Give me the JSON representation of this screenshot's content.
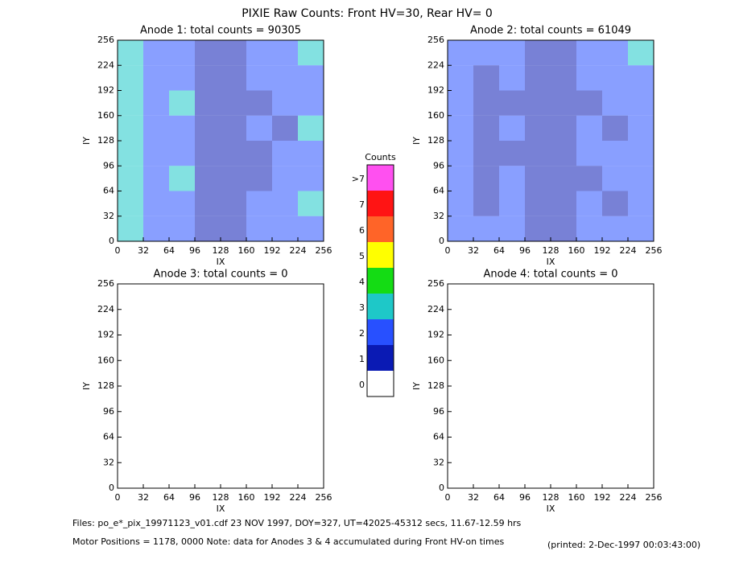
{
  "title": "PIXIE Raw Counts:  Front HV=30, Rear HV= 0",
  "chart_data": [
    {
      "type": "heatmap",
      "title": "Anode 1: total counts = 90305",
      "xlabel": "IX",
      "ylabel": "IY",
      "xlim": [
        0,
        256
      ],
      "ylim": [
        0,
        256
      ],
      "xticks": [
        0,
        32,
        64,
        96,
        128,
        160,
        192,
        224,
        256
      ],
      "yticks": [
        0,
        32,
        64,
        96,
        128,
        160,
        192,
        224,
        256
      ],
      "values": [
        [
          3,
          2,
          2,
          1,
          1,
          2,
          2,
          3
        ],
        [
          3,
          2,
          2,
          1,
          1,
          2,
          2,
          2
        ],
        [
          3,
          2,
          3,
          1,
          1,
          1,
          2,
          2
        ],
        [
          3,
          2,
          2,
          1,
          1,
          2,
          1,
          3
        ],
        [
          3,
          2,
          2,
          1,
          1,
          1,
          2,
          2
        ],
        [
          3,
          2,
          3,
          1,
          1,
          1,
          2,
          2
        ],
        [
          3,
          2,
          2,
          1,
          1,
          2,
          2,
          3
        ],
        [
          3,
          2,
          2,
          1,
          1,
          2,
          2,
          2
        ]
      ]
    },
    {
      "type": "heatmap",
      "title": "Anode 2: total counts = 61049",
      "xlabel": "IX",
      "ylabel": "IY",
      "xlim": [
        0,
        256
      ],
      "ylim": [
        0,
        256
      ],
      "xticks": [
        0,
        32,
        64,
        96,
        128,
        160,
        192,
        224,
        256
      ],
      "yticks": [
        0,
        32,
        64,
        96,
        128,
        160,
        192,
        224,
        256
      ],
      "values": [
        [
          2,
          2,
          2,
          1,
          1,
          2,
          2,
          3
        ],
        [
          2,
          1,
          2,
          1,
          1,
          2,
          2,
          2
        ],
        [
          2,
          1,
          1,
          1,
          1,
          1,
          2,
          2
        ],
        [
          2,
          1,
          2,
          1,
          1,
          2,
          1,
          2
        ],
        [
          2,
          1,
          1,
          1,
          1,
          2,
          2,
          2
        ],
        [
          2,
          1,
          2,
          1,
          1,
          1,
          2,
          2
        ],
        [
          2,
          1,
          2,
          1,
          1,
          2,
          1,
          2
        ],
        [
          2,
          2,
          2,
          1,
          1,
          2,
          2,
          2
        ]
      ]
    },
    {
      "type": "heatmap",
      "title": "Anode 3: total counts = 0",
      "xlabel": "IX",
      "ylabel": "IY",
      "xlim": [
        0,
        256
      ],
      "ylim": [
        0,
        256
      ],
      "xticks": [
        0,
        32,
        64,
        96,
        128,
        160,
        192,
        224,
        256
      ],
      "yticks": [
        0,
        32,
        64,
        96,
        128,
        160,
        192,
        224,
        256
      ]
    },
    {
      "type": "heatmap",
      "title": "Anode 4: total counts = 0",
      "xlabel": "IX",
      "ylabel": "IY",
      "xlim": [
        0,
        256
      ],
      "ylim": [
        0,
        256
      ],
      "xticks": [
        0,
        32,
        64,
        96,
        128,
        160,
        192,
        224,
        256
      ],
      "yticks": [
        0,
        32,
        64,
        96,
        128,
        160,
        192,
        224,
        256
      ]
    }
  ],
  "colorbar": {
    "title": "Counts",
    "labels": [
      "0",
      "1",
      "2",
      "3",
      "4",
      "5",
      "6",
      "7",
      ">7"
    ],
    "colors": [
      "#ffffff",
      "#0a1ab4",
      "#2850ff",
      "#1ec8c8",
      "#14dc14",
      "#ffff00",
      "#ff6428",
      "#ff1414",
      "#ff50f0"
    ]
  },
  "footer": {
    "files": "Files: po_e*_pix_19971123_v01.cdf    23 NOV 1997, DOY=327, UT=42025-45312 secs, 11.67-12.59 hrs",
    "motor": "Motor Positions = 1178, 0000    Note: data for Anodes 3 & 4 accumulated during Front HV-on times",
    "printed": "(printed:  2-Dec-1997 00:03:43:00)"
  }
}
